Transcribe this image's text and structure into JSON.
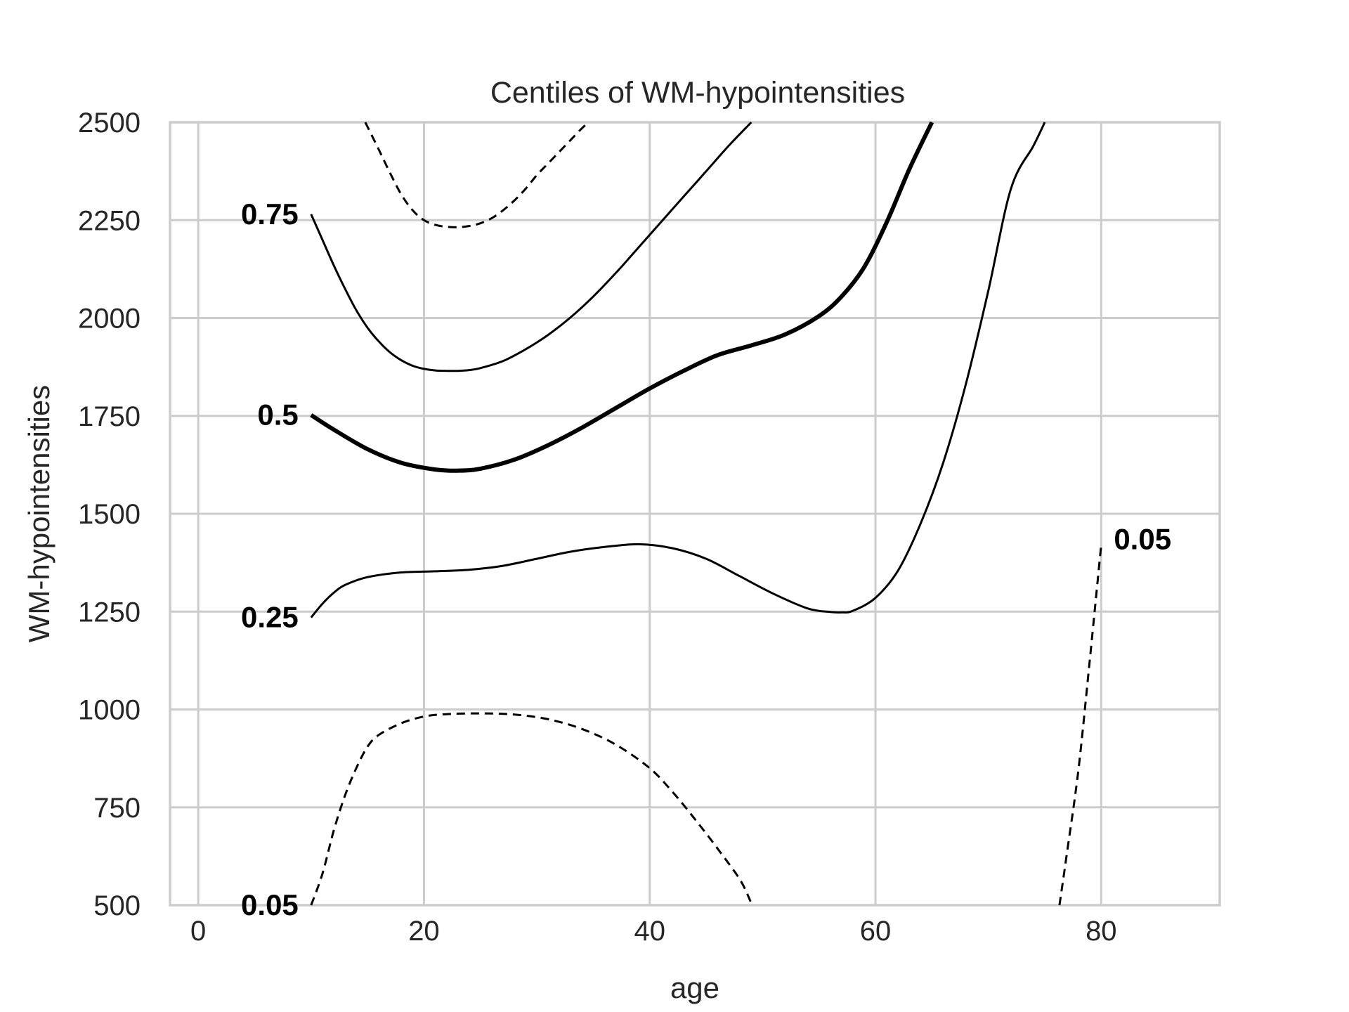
{
  "chart_data": {
    "type": "line",
    "title": "Centiles of WM-hypointensities",
    "xlabel": "age",
    "ylabel": "WM-hypointensities",
    "xlim": [
      -2.5,
      90.5
    ],
    "ylim": [
      500,
      2500
    ],
    "xticks": [
      "0",
      "20",
      "40",
      "60",
      "80"
    ],
    "yticks": [
      "500",
      "750",
      "1000",
      "1250",
      "1500",
      "1750",
      "2000",
      "2250",
      "2500"
    ],
    "grid": true,
    "colors": {
      "line": "#000000",
      "grid": "#cccccc",
      "text": "#262626"
    },
    "series": [
      {
        "name": "0.05",
        "style": "dashed",
        "x": [
          10,
          11,
          12,
          13,
          14,
          15,
          16,
          18,
          20,
          22,
          25,
          28,
          31,
          34,
          37,
          40,
          42,
          44,
          46,
          48,
          49
        ],
        "y": [
          500,
          580,
          690,
          780,
          850,
          905,
          935,
          965,
          982,
          988,
          990,
          987,
          975,
          950,
          910,
          850,
          790,
          720,
          645,
          565,
          505
        ]
      },
      {
        "name": "0.05",
        "style": "dashed",
        "x": [
          76.3,
          77,
          78,
          79,
          80
        ],
        "y": [
          500,
          640,
          850,
          1130,
          1420
        ]
      },
      {
        "name": "0.25",
        "style": "solid",
        "x": [
          10,
          11,
          12,
          13,
          15,
          18,
          21,
          24,
          27,
          30,
          33,
          36,
          39,
          42,
          45,
          48,
          51,
          54,
          56,
          57,
          58,
          60,
          62,
          64,
          66,
          68,
          70,
          72,
          74,
          75
        ],
        "y": [
          1235,
          1270,
          1298,
          1318,
          1338,
          1350,
          1353,
          1357,
          1367,
          1385,
          1403,
          1415,
          1422,
          1412,
          1385,
          1340,
          1295,
          1258,
          1249,
          1248,
          1252,
          1285,
          1355,
          1475,
          1630,
          1830,
          2070,
          2330,
          2440,
          2500
        ]
      },
      {
        "name": "0.5",
        "style": "bold",
        "x": [
          10,
          12,
          15,
          18,
          21,
          23,
          25,
          28,
          31,
          34,
          37,
          40,
          43,
          46,
          49,
          52,
          55,
          57,
          59,
          61,
          63,
          65
        ],
        "y": [
          1752,
          1715,
          1665,
          1630,
          1613,
          1610,
          1615,
          1638,
          1675,
          1720,
          1770,
          1820,
          1865,
          1905,
          1930,
          1958,
          2005,
          2055,
          2130,
          2245,
          2380,
          2500
        ]
      },
      {
        "name": "0.75",
        "style": "solid",
        "x": [
          10,
          11,
          12,
          13,
          14,
          15,
          16,
          17,
          18,
          19,
          20,
          21,
          22,
          23,
          24,
          25,
          27,
          29,
          31,
          33,
          35,
          37,
          39,
          41,
          43,
          45,
          47,
          49
        ],
        "y": [
          2265,
          2200,
          2135,
          2075,
          2020,
          1975,
          1940,
          1912,
          1892,
          1878,
          1870,
          1866,
          1865,
          1865,
          1867,
          1872,
          1890,
          1920,
          1957,
          2002,
          2055,
          2115,
          2180,
          2245,
          2310,
          2375,
          2440,
          2500
        ]
      },
      {
        "name": "",
        "style": "dashed",
        "x": [
          14.8,
          16,
          17,
          18,
          19,
          20,
          21,
          22,
          23,
          24,
          25,
          26,
          27,
          28,
          29,
          30,
          31,
          32,
          33,
          34,
          34.6
        ],
        "y": [
          2500,
          2430,
          2370,
          2315,
          2275,
          2250,
          2238,
          2233,
          2232,
          2235,
          2242,
          2255,
          2275,
          2300,
          2330,
          2365,
          2395,
          2425,
          2455,
          2485,
          2500
        ]
      }
    ],
    "annotations": [
      {
        "text": "0.75",
        "x": 10,
        "y": 2265,
        "side": "left"
      },
      {
        "text": "0.5",
        "x": 10,
        "y": 1752,
        "side": "left"
      },
      {
        "text": "0.25",
        "x": 10,
        "y": 1235,
        "side": "left"
      },
      {
        "text": "0.05",
        "x": 10,
        "y": 500,
        "side": "left"
      },
      {
        "text": "0.05",
        "x": 80,
        "y": 1420,
        "side": "right"
      }
    ]
  }
}
